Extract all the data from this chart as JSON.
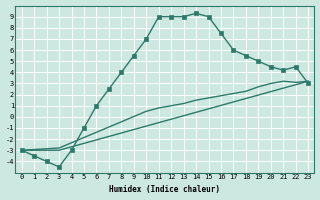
{
  "title": "",
  "xlabel": "Humidex (Indice chaleur)",
  "bg_color": "#cce8e0",
  "grid_color": "#ffffff",
  "line_color": "#2d7a6a",
  "x_ticks": [
    0,
    1,
    2,
    3,
    4,
    5,
    6,
    7,
    8,
    9,
    10,
    11,
    12,
    13,
    14,
    15,
    16,
    17,
    18,
    19,
    20,
    21,
    22,
    23
  ],
  "y_ticks": [
    -4,
    -3,
    -2,
    -1,
    0,
    1,
    2,
    3,
    4,
    5,
    6,
    7,
    8,
    9
  ],
  "xlim": [
    -0.5,
    23.5
  ],
  "ylim": [
    -5.0,
    10.0
  ],
  "curve1_x": [
    0,
    1,
    2,
    3,
    4,
    5,
    6,
    7,
    8,
    9,
    10,
    11,
    12,
    13,
    14,
    15,
    16,
    17,
    18,
    19,
    20,
    21,
    22,
    23
  ],
  "curve1_y": [
    -3.0,
    -3.5,
    -4.0,
    -4.5,
    -3.0,
    -1.0,
    1.0,
    2.5,
    4.0,
    5.5,
    7.0,
    9.0,
    9.0,
    9.0,
    9.3,
    9.0,
    7.5,
    6.0,
    5.5,
    5.0,
    4.5,
    4.2,
    4.5,
    3.0
  ],
  "curve2_x": [
    0,
    3,
    23
  ],
  "curve2_y": [
    -3.0,
    -3.0,
    3.2
  ],
  "curve3_x": [
    0,
    3,
    10,
    11,
    12,
    13,
    14,
    15,
    16,
    17,
    18,
    19,
    20,
    21,
    22,
    23
  ],
  "curve3_y": [
    -3.0,
    -2.8,
    0.5,
    0.8,
    1.0,
    1.2,
    1.5,
    1.7,
    1.9,
    2.1,
    2.3,
    2.7,
    3.0,
    3.2,
    3.1,
    3.2
  ],
  "tick_fontsize": 5.0,
  "xlabel_fontsize": 5.5,
  "linewidth": 1.0,
  "markersize": 2.5
}
